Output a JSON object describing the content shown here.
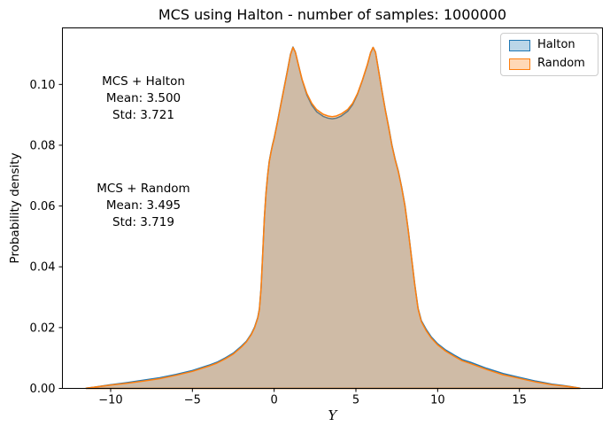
{
  "figure": {
    "title": "MCS using Halton - number of samples: 1000000",
    "background_color": "#ffffff"
  },
  "chart_data": {
    "type": "area",
    "title": "MCS using Halton - number of samples: 1000000",
    "xlabel": "Y",
    "ylabel": "Probability density",
    "xlim": [
      -12.95,
      20.08
    ],
    "ylim": [
      0,
      0.1186
    ],
    "grid": false,
    "xticks": {
      "values": [
        -10,
        -5,
        0,
        5,
        10,
        15
      ],
      "labels": [
        "−10",
        "−5",
        "0",
        "5",
        "10",
        "15"
      ]
    },
    "yticks": {
      "values": [
        0.0,
        0.02,
        0.04,
        0.06,
        0.08,
        0.1
      ],
      "labels": [
        "0.00",
        "0.02",
        "0.04",
        "0.06",
        "0.08",
        "0.10"
      ]
    },
    "legend": {
      "position": "upper right",
      "entries": [
        {
          "label": "Halton",
          "edge_color": "#1f77b4",
          "fill_color": "rgba(31,119,180,0.3)"
        },
        {
          "label": "Random",
          "edge_color": "#ff7f0e",
          "fill_color": "rgba(255,127,14,0.3)"
        }
      ]
    },
    "annotations": [
      {
        "name": "halton-stats",
        "lines": [
          "MCS + Halton",
          "Mean: 3.500",
          "Std: 3.721"
        ]
      },
      {
        "name": "random-stats",
        "lines": [
          "MCS + Random",
          "Mean: 3.495",
          "Std: 3.719"
        ]
      }
    ],
    "x": [
      -11.5,
      -11,
      -10,
      -9,
      -8,
      -7,
      -6,
      -5,
      -4,
      -3.5,
      -3,
      -2.5,
      -2,
      -1.7,
      -1.4,
      -1.2,
      -1.0,
      -0.9,
      -0.8,
      -0.7,
      -0.6,
      -0.5,
      -0.4,
      -0.3,
      -0.2,
      -0.1,
      0,
      0.2,
      0.4,
      0.6,
      0.8,
      1.0,
      1.15,
      1.3,
      1.5,
      1.7,
      2.0,
      2.3,
      2.6,
      3.0,
      3.3,
      3.55,
      3.8,
      4.1,
      4.5,
      4.8,
      5.1,
      5.4,
      5.7,
      5.9,
      6.05,
      6.2,
      6.4,
      6.6,
      6.8,
      7.0,
      7.2,
      7.4,
      7.6,
      7.8,
      8.0,
      8.2,
      8.4,
      8.6,
      8.8,
      9.0,
      9.3,
      9.6,
      10.0,
      10.5,
      11.0,
      11.5,
      12.0,
      13.0,
      14.0,
      15.0,
      16.0,
      17.0,
      18.0,
      18.7
    ],
    "series": [
      {
        "name": "Halton",
        "edge_color": "#1f77b4",
        "fill_color": "rgba(31,119,180,0.3)",
        "mean": 3.5,
        "std": 3.721,
        "values": [
          0.0001,
          0.0004,
          0.0012,
          0.0019,
          0.0027,
          0.0035,
          0.0046,
          0.0059,
          0.0076,
          0.0086,
          0.01,
          0.0116,
          0.0139,
          0.0155,
          0.0179,
          0.0201,
          0.0234,
          0.0262,
          0.0332,
          0.0442,
          0.0562,
          0.0642,
          0.0702,
          0.0747,
          0.0777,
          0.0802,
          0.0824,
          0.0877,
          0.0932,
          0.0987,
          0.1042,
          0.1099,
          0.1123,
          0.1106,
          0.1061,
          0.1016,
          0.0966,
          0.0932,
          0.091,
          0.0895,
          0.0889,
          0.0887,
          0.0889,
          0.0896,
          0.0912,
          0.0934,
          0.0968,
          0.1014,
          0.1064,
          0.1104,
          0.1122,
          0.1106,
          0.1042,
          0.0977,
          0.0917,
          0.0862,
          0.0802,
          0.0754,
          0.0714,
          0.0662,
          0.0602,
          0.0522,
          0.0432,
          0.0342,
          0.0264,
          0.0223,
          0.0194,
          0.017,
          0.0147,
          0.0126,
          0.011,
          0.0095,
          0.0086,
          0.0066,
          0.0049,
          0.0036,
          0.0024,
          0.0014,
          0.0007,
          0.0001
        ]
      },
      {
        "name": "Random",
        "edge_color": "#ff7f0e",
        "fill_color": "rgba(255,127,14,0.3)",
        "mean": 3.495,
        "std": 3.719,
        "values": [
          0.0001,
          0.0004,
          0.0011,
          0.0017,
          0.0024,
          0.0032,
          0.0043,
          0.0056,
          0.0073,
          0.0083,
          0.0097,
          0.0113,
          0.0136,
          0.0153,
          0.0177,
          0.0199,
          0.0232,
          0.026,
          0.033,
          0.044,
          0.056,
          0.064,
          0.07,
          0.0745,
          0.0775,
          0.08,
          0.0822,
          0.0875,
          0.093,
          0.0985,
          0.104,
          0.1098,
          0.1122,
          0.1105,
          0.106,
          0.1018,
          0.097,
          0.0938,
          0.0917,
          0.0902,
          0.0896,
          0.0894,
          0.0896,
          0.0903,
          0.0918,
          0.0938,
          0.097,
          0.1015,
          0.1065,
          0.1105,
          0.1122,
          0.1105,
          0.104,
          0.0975,
          0.0915,
          0.086,
          0.08,
          0.0752,
          0.0712,
          0.066,
          0.06,
          0.052,
          0.043,
          0.034,
          0.0262,
          0.022,
          0.019,
          0.0166,
          0.0143,
          0.0122,
          0.0106,
          0.0091,
          0.0082,
          0.0062,
          0.0045,
          0.0033,
          0.0021,
          0.0012,
          0.0006,
          0.0001
        ]
      }
    ]
  }
}
